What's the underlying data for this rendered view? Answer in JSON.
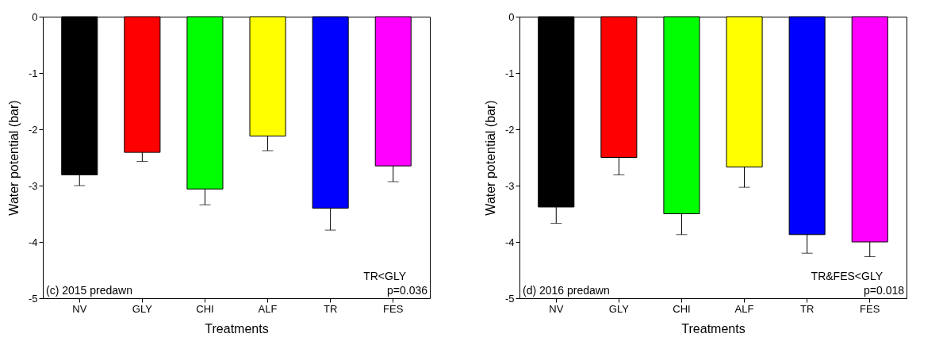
{
  "chart_data": [
    {
      "type": "bar",
      "xlabel": "Treatments",
      "ylabel": "Water potential (bar)",
      "categories": [
        "NV",
        "GLY",
        "CHI",
        "ALF",
        "TR",
        "FES"
      ],
      "values": [
        -2.81,
        -2.41,
        -3.06,
        -2.12,
        -3.4,
        -2.65
      ],
      "colors": [
        "#000000",
        "#ff0000",
        "#00ff00",
        "#ffff00",
        "#0000ff",
        "#ff00ff"
      ],
      "errors": [
        [
          -3.0,
          -2.81
        ],
        [
          -2.57,
          -2.41
        ],
        [
          -3.34,
          -3.06
        ],
        [
          -2.38,
          -2.12
        ],
        [
          -3.79,
          -3.4
        ],
        [
          -2.93,
          -2.65
        ]
      ],
      "ylim": [
        -5,
        0
      ],
      "yticks": [
        -5,
        -4,
        -3,
        -2,
        -1,
        0
      ],
      "grid": false,
      "annotations": [
        "(c) 2015 predawn",
        "TR<GLY",
        "p=0.036"
      ]
    },
    {
      "type": "bar",
      "xlabel": "Treatments",
      "ylabel": "Water potential (bar)",
      "categories": [
        "NV",
        "GLY",
        "CHI",
        "ALF",
        "TR",
        "FES"
      ],
      "values": [
        -3.38,
        -2.5,
        -3.5,
        -2.67,
        -3.87,
        -4.0
      ],
      "colors": [
        "#000000",
        "#ff0000",
        "#00ff00",
        "#ffff00",
        "#0000ff",
        "#ff00ff"
      ],
      "errors": [
        [
          -3.67,
          -3.38
        ],
        [
          -2.81,
          -2.5
        ],
        [
          -3.87,
          -3.5
        ],
        [
          -3.03,
          -2.67
        ],
        [
          -4.2,
          -3.87
        ],
        [
          -4.26,
          -4.0
        ]
      ],
      "ylim": [
        -5,
        0
      ],
      "yticks": [
        -5,
        -4,
        -3,
        -2,
        -1,
        0
      ],
      "grid": false,
      "annotations": [
        "(d) 2016 predawn",
        "TR&FES<GLY",
        "p=0.018"
      ]
    }
  ]
}
